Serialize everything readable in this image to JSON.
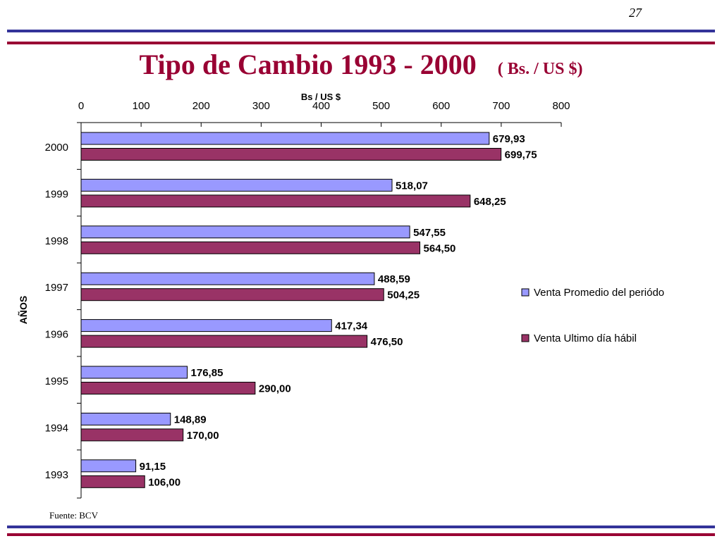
{
  "page_number": "27",
  "title": "Tipo de Cambio 1993 - 2000",
  "title_unit": "( Bs. / US $)",
  "source": "Fuente: BCV",
  "colors": {
    "title": "#990033",
    "rule_blue": "#333399",
    "rule_red": "#990033"
  },
  "chart_data": {
    "type": "bar",
    "orientation": "horizontal",
    "xlabel": "Bs / US $",
    "ylabel": "AÑOS",
    "xlim": [
      0,
      800
    ],
    "xticks": [
      "0",
      "100",
      "200",
      "300",
      "400",
      "500",
      "600",
      "700",
      "800"
    ],
    "x_axis_position": "top",
    "grid": false,
    "legend_position": "right",
    "categories": [
      "2000",
      "1999",
      "1998",
      "1997",
      "1996",
      "1995",
      "1994",
      "1993"
    ],
    "series": [
      {
        "name": "Venta Promedio del periódo",
        "color": "#9999ff",
        "values": [
          679.93,
          518.07,
          547.55,
          488.59,
          417.34,
          176.85,
          148.89,
          91.15
        ],
        "labels": [
          "679,93",
          "518,07",
          "547,55",
          "488,59",
          "417,34",
          "176,85",
          "148,89",
          "91,15"
        ]
      },
      {
        "name": "Venta Ultimo día hábil",
        "color": "#993366",
        "values": [
          699.75,
          648.25,
          564.5,
          504.25,
          476.5,
          290.0,
          170.0,
          106.0
        ],
        "labels": [
          "699,75",
          "648,25",
          "564,50",
          "504,25",
          "476,50",
          "290,00",
          "170,00",
          "106,00"
        ]
      }
    ]
  }
}
